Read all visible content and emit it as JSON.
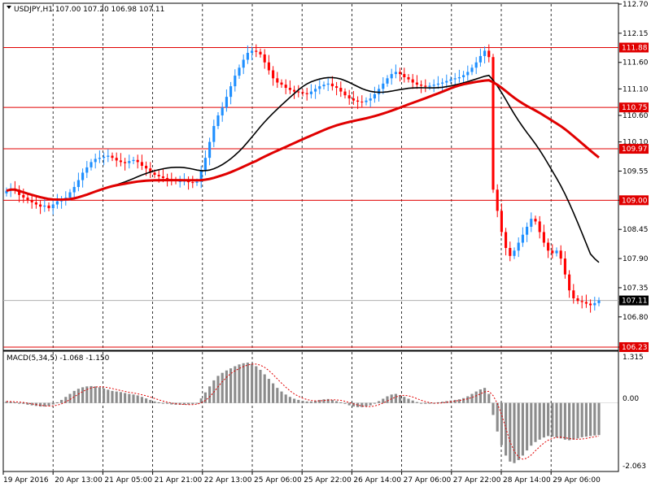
{
  "header": {
    "symbol_line": "USDJPY,H1  107.00 107.20 106.98 107.11"
  },
  "macd": {
    "title": "MACD(5,34,5) -1.068 -1.150",
    "axis_labels": [
      "1.315",
      "0.00",
      "-2.063"
    ]
  },
  "chart_data": [
    {
      "type": "candlestick",
      "title": "USDJPY,H1  107.00 107.20 106.98 107.11",
      "price_axis_labels": [
        "112.70",
        "112.15",
        "111.60",
        "111.10",
        "110.60",
        "110.10",
        "109.55",
        "109.00",
        "108.45",
        "107.90",
        "107.35",
        "106.80",
        "106.23"
      ],
      "ylim": [
        106.23,
        112.7
      ],
      "grid": true,
      "time_axis_labels": [
        "19 Apr 2016",
        "20 Apr 13:00",
        "21 Apr 05:00",
        "21 Apr 21:00",
        "22 Apr 13:00",
        "25 Apr 06:00",
        "25 Apr 22:00",
        "26 Apr 14:00",
        "27 Apr 06:00",
        "27 Apr 22:00",
        "28 Apr 14:00",
        "29 Apr 06:00"
      ],
      "horizontal_levels": [
        {
          "price": 111.88,
          "label": "111.88",
          "color": "#e00000"
        },
        {
          "price": 110.75,
          "label": "110.75",
          "color": "#e00000"
        },
        {
          "price": 109.97,
          "label": "109.97",
          "color": "#e00000"
        },
        {
          "price": 109.0,
          "label": "109.00",
          "color": "#e00000"
        },
        {
          "price": 106.23,
          "label": "106.23",
          "color": "#e00000"
        }
      ],
      "current_price": {
        "price": 107.11,
        "label": "107.11"
      },
      "candles_close": [
        109.18,
        109.22,
        109.2,
        109.1,
        109.05,
        109.0,
        108.96,
        108.92,
        108.88,
        108.9,
        108.85,
        108.92,
        108.98,
        109.0,
        109.05,
        109.15,
        109.25,
        109.38,
        109.52,
        109.62,
        109.72,
        109.78,
        109.8,
        109.82,
        109.84,
        109.8,
        109.75,
        109.72,
        109.7,
        109.74,
        109.76,
        109.72,
        109.65,
        109.6,
        109.52,
        109.48,
        109.45,
        109.42,
        109.4,
        109.38,
        109.36,
        109.36,
        109.37,
        109.34,
        109.33,
        109.35,
        109.55,
        109.8,
        110.1,
        110.4,
        110.6,
        110.75,
        110.95,
        111.15,
        111.35,
        111.5,
        111.65,
        111.78,
        111.82,
        111.8,
        111.75,
        111.6,
        111.45,
        111.3,
        111.22,
        111.18,
        111.12,
        111.08,
        111.05,
        111.04,
        111.02,
        111.0,
        111.05,
        111.1,
        111.15,
        111.18,
        111.2,
        111.15,
        111.12,
        111.05,
        110.98,
        110.92,
        110.88,
        110.86,
        110.85,
        110.88,
        110.92,
        111.0,
        111.1,
        111.2,
        111.3,
        111.38,
        111.42,
        111.38,
        111.32,
        111.28,
        111.22,
        111.18,
        111.16,
        111.14,
        111.16,
        111.18,
        111.2,
        111.22,
        111.25,
        111.28,
        111.3,
        111.32,
        111.36,
        111.42,
        111.5,
        111.6,
        111.72,
        111.82,
        111.7,
        109.2,
        108.8,
        108.4,
        108.1,
        107.95,
        108.05,
        108.2,
        108.35,
        108.5,
        108.65,
        108.6,
        108.4,
        108.2,
        108.05,
        108.0,
        108.05,
        107.9,
        107.6,
        107.3,
        107.15,
        107.1,
        107.08,
        107.05,
        107.02,
        107.06,
        107.11
      ],
      "ma_black_series": "black moving average",
      "ma_red_series": "red moving average"
    },
    {
      "type": "bar",
      "title": "MACD(5,34,5) -1.068 -1.150",
      "ylim": [
        -2.063,
        1.315
      ],
      "series": [
        {
          "name": "MACD",
          "values": [
            0.05,
            0.04,
            0.02,
            0.0,
            -0.03,
            -0.06,
            -0.08,
            -0.1,
            -0.12,
            -0.12,
            -0.1,
            -0.05,
            0.02,
            0.1,
            0.2,
            0.3,
            0.4,
            0.47,
            0.52,
            0.55,
            0.56,
            0.55,
            0.52,
            0.48,
            0.44,
            0.4,
            0.38,
            0.36,
            0.33,
            0.3,
            0.28,
            0.25,
            0.2,
            0.15,
            0.1,
            0.05,
            0.02,
            -0.01,
            -0.03,
            -0.05,
            -0.06,
            -0.06,
            -0.06,
            -0.05,
            -0.04,
            0.0,
            0.15,
            0.35,
            0.55,
            0.75,
            0.9,
            1.0,
            1.08,
            1.15,
            1.22,
            1.28,
            1.32,
            1.34,
            1.3,
            1.22,
            1.1,
            0.95,
            0.8,
            0.65,
            0.5,
            0.38,
            0.28,
            0.2,
            0.14,
            0.1,
            0.07,
            0.05,
            0.05,
            0.07,
            0.1,
            0.12,
            0.13,
            0.1,
            0.06,
            0.02,
            -0.03,
            -0.08,
            -0.12,
            -0.14,
            -0.14,
            -0.12,
            -0.08,
            -0.02,
            0.06,
            0.14,
            0.22,
            0.28,
            0.3,
            0.26,
            0.2,
            0.14,
            0.08,
            0.03,
            -0.01,
            -0.03,
            -0.02,
            0.0,
            0.02,
            0.04,
            0.06,
            0.08,
            0.1,
            0.12,
            0.16,
            0.22,
            0.3,
            0.38,
            0.45,
            0.5,
            0.3,
            -0.4,
            -0.95,
            -1.4,
            -1.75,
            -1.95,
            -2.0,
            -1.9,
            -1.75,
            -1.58,
            -1.42,
            -1.3,
            -1.22,
            -1.15,
            -1.1,
            -1.12,
            -1.15,
            -1.18,
            -1.22,
            -1.24,
            -1.22,
            -1.18,
            -1.14,
            -1.12,
            -1.1,
            -1.08,
            -1.068
          ]
        },
        {
          "name": "Signal",
          "values": "derived"
        }
      ]
    }
  ]
}
